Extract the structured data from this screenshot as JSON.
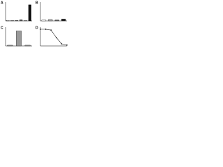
{
  "chart_data": [
    {
      "type": "bar",
      "panel": "A",
      "categories": [
        null,
        null,
        null,
        null,
        null,
        null
      ],
      "values": [
        1,
        1,
        1,
        2,
        1,
        30
      ],
      "colors": [
        "#ffffff",
        "#bbbbbb",
        "#888888",
        "#555555",
        "#cccccc",
        "#111111"
      ],
      "ylim": [
        0,
        35
      ]
    },
    {
      "type": "bar",
      "panel": "B",
      "categories": [
        null,
        null,
        null,
        null
      ],
      "values": [
        2,
        3,
        2,
        4
      ],
      "colors": [
        "#ffffff",
        "#aaaaaa",
        "#666666",
        "#222222"
      ],
      "ylim": [
        0,
        40
      ]
    },
    {
      "type": "bar",
      "panel": "C",
      "categories": [
        null,
        null,
        null
      ],
      "values": [
        1,
        20,
        1
      ],
      "colors": [
        "#999999",
        "#999999",
        "#999999"
      ],
      "ylim": [
        0,
        25
      ]
    },
    {
      "type": "line",
      "panel": "D",
      "x": [
        0,
        1,
        2,
        3,
        4,
        5
      ],
      "values": [
        40,
        40,
        38,
        20,
        5,
        2
      ],
      "color": "#222222",
      "xlim": [
        0,
        5
      ],
      "ylim": [
        0,
        45
      ]
    }
  ]
}
